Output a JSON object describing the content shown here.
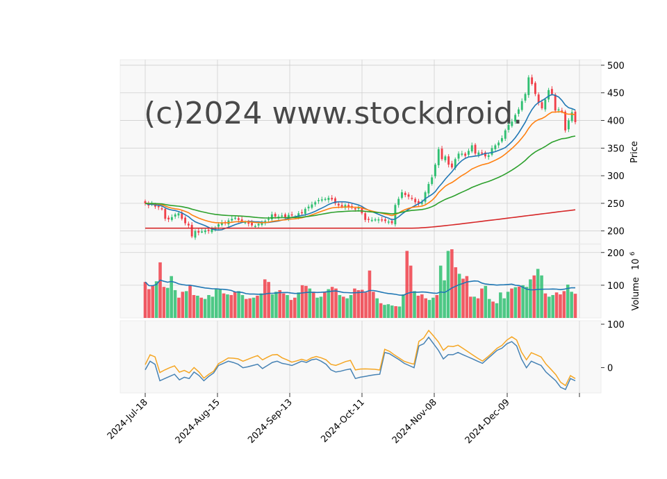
{
  "chart_data": {
    "type": "candlestick",
    "watermark": "(c)2024 www.stockdroid.",
    "x_tick_labels": [
      "2024-Jul-18",
      "2024-Aug-15",
      "2024-Sep-13",
      "2024-Oct-11",
      "2024-Nov-08",
      "2024-Dec-09"
    ],
    "colors": {
      "up": "#2fbf71",
      "down": "#f0404a",
      "ma1": "#1f77b4",
      "ma2": "#ff7f0e",
      "ma3": "#2ca02c",
      "ma4": "#d62728",
      "vol_ma": "#1f77b4",
      "osc1": "#4682b4",
      "osc2": "#f5a623"
    },
    "price_panel": {
      "ylabel": "Price",
      "ylim": [
        177,
        510
      ],
      "yticks": [
        200,
        250,
        300,
        350,
        400,
        450,
        500
      ],
      "grid": true
    },
    "volume_panel": {
      "ylabel": "Volume  10^6",
      "ylabel_main": "Volume",
      "ylabel_exp": "10",
      "ylabel_sup": "6",
      "ylim": [
        0,
        225
      ],
      "yticks": [
        100,
        200
      ]
    },
    "oscillator_panel": {
      "ylim": [
        -58,
        108
      ],
      "yticks": [
        0,
        100
      ]
    },
    "candles_close": [
      250,
      246,
      249,
      244,
      243,
      240,
      222,
      221,
      225,
      230,
      232,
      222,
      214,
      210,
      190,
      200,
      197,
      199,
      201,
      200,
      203,
      206,
      212,
      215,
      214,
      219,
      222,
      224,
      220,
      218,
      216,
      213,
      210,
      209,
      213,
      214,
      218,
      222,
      230,
      226,
      226,
      228,
      224,
      229,
      228,
      226,
      232,
      232,
      240,
      244,
      248,
      252,
      256,
      257,
      258,
      260,
      257,
      250,
      246,
      244,
      247,
      243,
      242,
      239,
      243,
      232,
      220,
      220,
      220,
      221,
      221,
      219,
      218,
      217,
      214,
      247,
      258,
      270,
      265,
      262,
      258,
      252,
      250,
      252,
      270,
      285,
      297,
      320,
      348,
      330,
      335,
      320,
      315,
      330,
      340,
      340,
      336,
      345,
      355,
      340,
      342,
      340,
      335,
      337,
      350,
      355,
      360,
      368,
      382,
      392,
      398,
      410,
      420,
      435,
      448,
      478,
      466,
      448,
      432,
      422,
      438,
      455,
      448,
      418,
      420,
      416,
      382,
      400,
      415,
      397
    ],
    "volume_values": [
      110,
      88,
      98,
      112,
      170,
      95,
      92,
      128,
      85,
      62,
      80,
      82,
      100,
      70,
      68,
      62,
      58,
      70,
      65,
      90,
      88,
      75,
      72,
      70,
      80,
      82,
      70,
      58,
      60,
      62,
      68,
      75,
      118,
      110,
      72,
      80,
      85,
      75,
      70,
      55,
      62,
      78,
      100,
      98,
      90,
      80,
      62,
      65,
      80,
      88,
      95,
      90,
      70,
      65,
      60,
      70,
      90,
      85,
      86,
      78,
      145,
      80,
      60,
      45,
      40,
      42,
      38,
      36,
      35,
      72,
      205,
      160,
      82,
      68,
      72,
      60,
      55,
      62,
      70,
      160,
      115,
      205,
      210,
      155,
      135,
      120,
      128,
      65,
      65,
      60,
      90,
      98,
      58,
      50,
      45,
      78,
      60,
      80,
      90,
      94,
      96,
      100,
      95,
      118,
      130,
      150,
      130,
      75,
      65,
      70,
      78,
      72,
      82,
      102,
      80,
      74
    ],
    "oscillator_values": [
      -5,
      15,
      8,
      -30,
      -25,
      -20,
      -15,
      -28,
      -22,
      -25,
      -10,
      -18,
      -30,
      -20,
      -12,
      5,
      10,
      15,
      12,
      8,
      0,
      2,
      5,
      8,
      -2,
      5,
      12,
      15,
      10,
      8,
      5,
      10,
      15,
      12,
      18,
      20,
      15,
      8,
      -5,
      -10,
      -8,
      -5,
      -3,
      -25,
      -22,
      -20,
      -18,
      -16,
      -15,
      35,
      32,
      25,
      18,
      10,
      5,
      0,
      50,
      55,
      70,
      55,
      40,
      20,
      30,
      30,
      35,
      30,
      25,
      20,
      15,
      10,
      20,
      30,
      40,
      45,
      55,
      60,
      50,
      20,
      0,
      15,
      10,
      5,
      -10,
      -20,
      -30,
      -45,
      -50,
      -25,
      -30
    ]
  }
}
